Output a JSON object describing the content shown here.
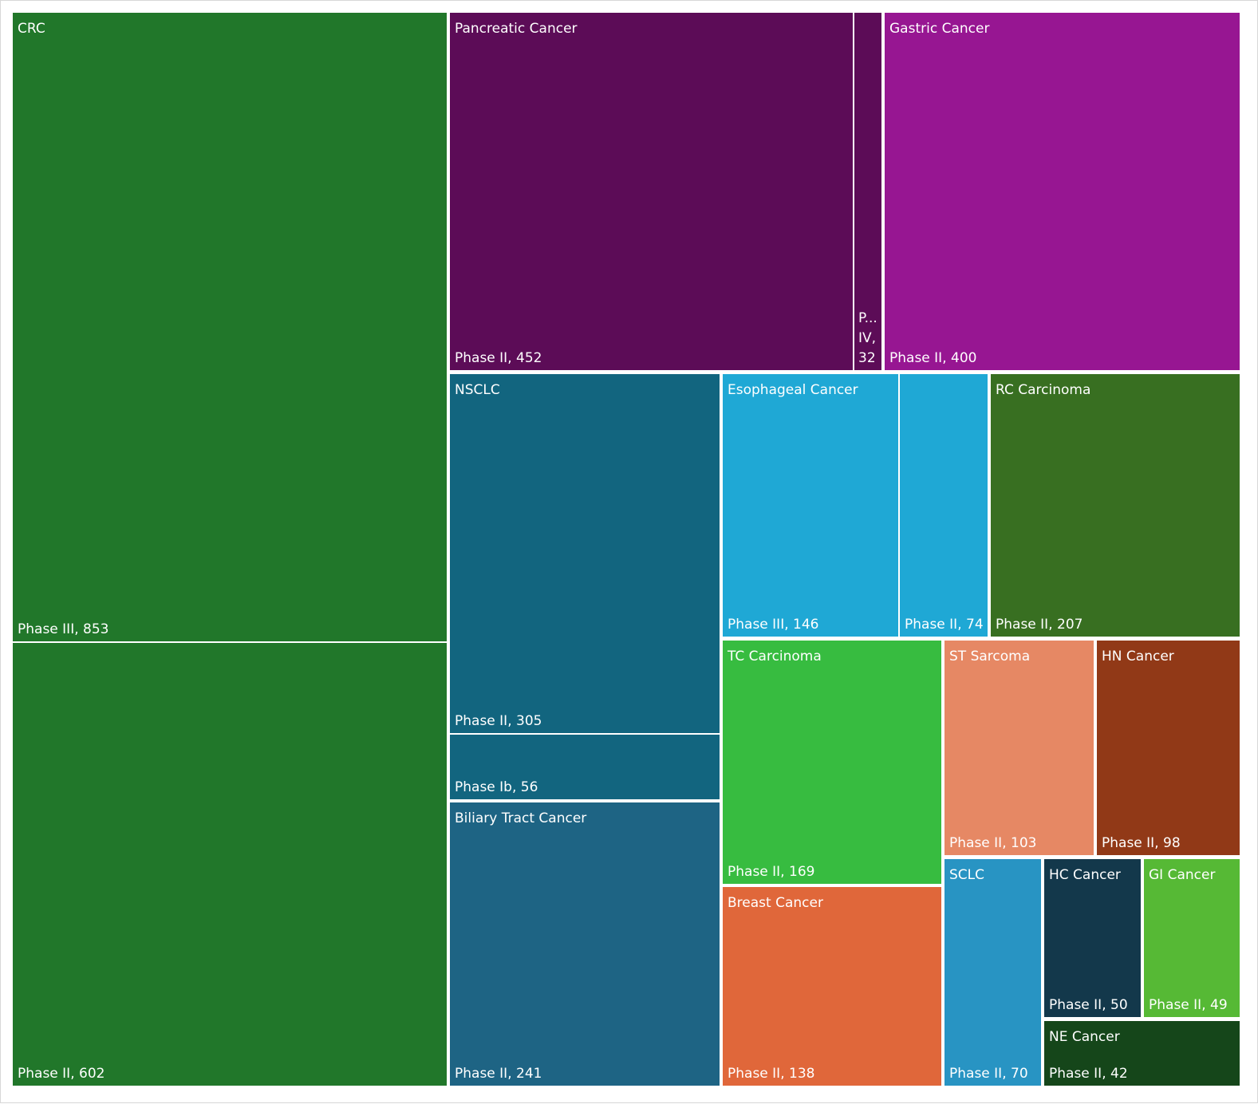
{
  "chart_data": {
    "type": "treemap",
    "groups": [
      {
        "name": "CRC",
        "color": "#21772a",
        "items": [
          {
            "label": "Phase III, 853",
            "phase": "Phase III",
            "value": 853
          },
          {
            "label": "Phase II, 602",
            "phase": "Phase II",
            "value": 602
          }
        ]
      },
      {
        "name": "Pancreatic Cancer",
        "color": "#5c0c57",
        "items": [
          {
            "label": "Phase II, 452",
            "phase": "Phase II",
            "value": 452
          },
          {
            "label": "P...",
            "label_lines": [
              "P...",
              "IV,",
              "32"
            ],
            "phase": "Phase IV",
            "value": 32
          }
        ]
      },
      {
        "name": "Gastric Cancer",
        "color": "#971692",
        "items": [
          {
            "label": "Phase II, 400",
            "phase": "Phase II",
            "value": 400
          }
        ]
      },
      {
        "name": "NSCLC",
        "color": "#12657f",
        "items": [
          {
            "label": "Phase II, 305",
            "phase": "Phase II",
            "value": 305
          },
          {
            "label": "Phase Ib, 56",
            "phase": "Phase Ib",
            "value": 56
          }
        ]
      },
      {
        "name": "Esophageal Cancer",
        "color": "#1fa8d5",
        "items": [
          {
            "label": "Phase III, 146",
            "phase": "Phase III",
            "value": 146
          },
          {
            "label": "Phase II, 74",
            "phase": "Phase II",
            "value": 74
          }
        ]
      },
      {
        "name": "RC Carcinoma",
        "color": "#386f21",
        "items": [
          {
            "label": "Phase II, 207",
            "phase": "Phase II",
            "value": 207
          }
        ]
      },
      {
        "name": "Biliary Tract Cancer",
        "color": "#1e6484",
        "items": [
          {
            "label": "Phase II, 241",
            "phase": "Phase II",
            "value": 241
          }
        ]
      },
      {
        "name": "TC Carcinoma",
        "color": "#37bc40",
        "items": [
          {
            "label": "Phase II, 169",
            "phase": "Phase II",
            "value": 169
          }
        ]
      },
      {
        "name": "ST Sarcoma",
        "color": "#e68864",
        "items": [
          {
            "label": "Phase II, 103",
            "phase": "Phase II",
            "value": 103
          }
        ]
      },
      {
        "name": "HN Cancer",
        "color": "#913917",
        "items": [
          {
            "label": "Phase II, 98",
            "phase": "Phase II",
            "value": 98
          }
        ]
      },
      {
        "name": "Breast Cancer",
        "color": "#e0673a",
        "items": [
          {
            "label": "Phase II, 138",
            "phase": "Phase II",
            "value": 138
          }
        ]
      },
      {
        "name": "SCLC",
        "color": "#2894c3",
        "items": [
          {
            "label": "Phase II, 70",
            "phase": "Phase II",
            "value": 70
          }
        ]
      },
      {
        "name": "HC Cancer",
        "color": "#13384b",
        "items": [
          {
            "label": "Phase II, 50",
            "phase": "Phase II",
            "value": 50
          }
        ]
      },
      {
        "name": "GI Cancer",
        "color": "#56b935",
        "items": [
          {
            "label": "Phase II, 49",
            "phase": "Phase II",
            "value": 49
          }
        ]
      },
      {
        "name": "NE Cancer",
        "color": "#15461a",
        "items": [
          {
            "label": "Phase II, 42",
            "phase": "Phase II",
            "value": 42
          }
        ]
      }
    ]
  }
}
